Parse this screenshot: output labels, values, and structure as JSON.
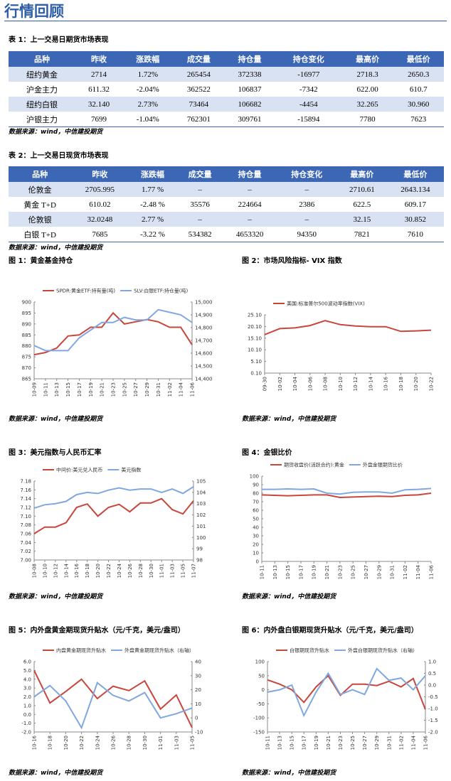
{
  "title": "行情回顾",
  "tables": [
    {
      "caption": "表 1：上一交易日期货市场表现",
      "headers": [
        "品种",
        "昨收",
        "涨跌幅",
        "成交量",
        "持仓量",
        "持仓变化",
        "最高价",
        "最低价"
      ],
      "rows": [
        [
          "纽约黄金",
          "2714",
          "1.72%",
          "265454",
          "372338",
          "-16977",
          "2718.3",
          "2650.3"
        ],
        [
          "沪金主力",
          "611.32",
          "-2.04%",
          "362522",
          "106837",
          "-7342",
          "622.00",
          "610.7"
        ],
        [
          "纽约白银",
          "32.140",
          "2.73%",
          "73464",
          "106682",
          "-4454",
          "32.265",
          "30.960"
        ],
        [
          "沪银主力",
          "7699",
          "-1.04%",
          "762301",
          "309761",
          "-15894",
          "7780",
          "7623"
        ]
      ],
      "source": "数据来源：wind，中信建投期货"
    },
    {
      "caption": "表 2：上一交易日现货市场表现",
      "headers": [
        "品种",
        "昨收",
        "涨跌幅",
        "成交量",
        "持仓量",
        "持仓变化",
        "最高价",
        "最低价"
      ],
      "rows": [
        [
          "伦敦金",
          "2705.995",
          "1.77 %",
          "–",
          "–",
          "–",
          "2710.61",
          "2643.134"
        ],
        [
          "黄金 T+D",
          "610.02",
          "-2.48 %",
          "35576",
          "224664",
          "2386",
          "622.5",
          "609.17"
        ],
        [
          "伦敦银",
          "32.0248",
          "2.77 %",
          "–",
          "–",
          "–",
          "32.15",
          "30.852"
        ],
        [
          "白银 T+D",
          "7685",
          "-3.22 %",
          "534382",
          "4653320",
          "94350",
          "7821",
          "7610"
        ]
      ],
      "source": "数据来源：wind，中信建投期货"
    }
  ],
  "chart_data": [
    {
      "type": "line",
      "title": "图 1：黄金基金持仓",
      "source": "数据来源：wind，中信建投期货",
      "categories": [
        "10-09",
        "10-11",
        "10-13",
        "10-15",
        "10-17",
        "10-19",
        "10-21",
        "10-23",
        "10-25",
        "10-27",
        "10-29",
        "10-31",
        "11-02",
        "11-04",
        "11-06"
      ],
      "series": [
        {
          "name": "SPDR:黄金ETF:持有量(吨)",
          "color": "#c9463d",
          "values": [
            876,
            877,
            879,
            884.5,
            885,
            888.5,
            888.5,
            895,
            890,
            891,
            892,
            891,
            888.5,
            888.5,
            880.5
          ]
        },
        {
          "name": "SLV:白银ETF:持仓量(吨)",
          "color": "#80a8e0",
          "axis": "y2",
          "values": [
            14660,
            14620,
            14620,
            14620,
            14720,
            14780,
            14840,
            14840,
            14880,
            14860,
            14860,
            14940,
            14920,
            14900,
            14840
          ]
        }
      ],
      "ylim": [
        865,
        900
      ],
      "yticks": [
        865,
        870,
        875,
        880,
        885,
        890,
        895,
        900
      ],
      "y2lim": [
        14400,
        15000
      ],
      "y2ticks": [
        {
          "value": 14400,
          "label": "14,400"
        },
        {
          "value": 14500,
          "label": "14,500"
        },
        {
          "value": 14600,
          "label": "14,600"
        },
        {
          "value": 14700,
          "label": "14,700"
        },
        {
          "value": 14800,
          "label": "14,800"
        },
        {
          "value": 14900,
          "label": "14,900"
        },
        {
          "value": 15000,
          "label": "15,000"
        }
      ]
    },
    {
      "type": "line",
      "title": "图 2：市场风险指标- VIX 指数",
      "source": "数据来源：wind，中信建投期货",
      "categories": [
        "09-30",
        "10-02",
        "10-04",
        "10-06",
        "10-08",
        "10-10",
        "10-12",
        "10-14",
        "10-16",
        "10-18",
        "10-20",
        "10-22"
      ],
      "series": [
        {
          "name": "美国:标准普尔500波动率指数(VIX)",
          "color": "#c9463d",
          "values": [
            16.6,
            19.2,
            19.5,
            20.5,
            22.6,
            20.9,
            20.3,
            20,
            20,
            18,
            18.2,
            18.5
          ]
        }
      ],
      "ylim": [
        0.1,
        25.1
      ],
      "yticks": [
        {
          "value": 0.1,
          "label": "0.10"
        },
        {
          "value": 5.1,
          "label": "5.10"
        },
        {
          "value": 10.1,
          "label": "10.10"
        },
        {
          "value": 15.1,
          "label": "15.10"
        },
        {
          "value": 20.1,
          "label": "20.10"
        },
        {
          "value": 25.1,
          "label": "25.10"
        }
      ]
    },
    {
      "type": "line",
      "title": "图 3：美元指数与人民币汇率",
      "source": "数据来源：wind，中信建投期货",
      "categories": [
        "10-08",
        "10-10",
        "10-12",
        "10-14",
        "10-16",
        "10-18",
        "10-20",
        "10-22",
        "10-24",
        "10-26",
        "10-28",
        "10-30",
        "11-01",
        "11-03",
        "11-05",
        "11-07"
      ],
      "series": [
        {
          "name": "中间价:美元兑人民币",
          "color": "#c9463d",
          "values": [
            7.06,
            7.075,
            7.075,
            7.085,
            7.12,
            7.128,
            7.1,
            7.12,
            7.127,
            7.11,
            7.13,
            7.13,
            7.14,
            7.115,
            7.105,
            7.135
          ]
        },
        {
          "name": "美元指数",
          "color": "#80a8e0",
          "axis": "y2",
          "values": [
            102.6,
            102.9,
            103,
            103.2,
            103.8,
            104,
            103.9,
            104.2,
            104.4,
            104.2,
            104.3,
            104.3,
            104,
            104.3,
            103.9,
            104.5
          ]
        }
      ],
      "ylim": [
        7,
        7.18
      ],
      "yticks": [
        {
          "value": 7,
          "label": "7.00"
        },
        {
          "value": 7.02,
          "label": "7.02"
        },
        {
          "value": 7.04,
          "label": "7.04"
        },
        {
          "value": 7.06,
          "label": "7.06"
        },
        {
          "value": 7.08,
          "label": "7.08"
        },
        {
          "value": 7.1,
          "label": "7.10"
        },
        {
          "value": 7.12,
          "label": "7.12"
        },
        {
          "value": 7.14,
          "label": "7.14"
        },
        {
          "value": 7.16,
          "label": "7.16"
        },
        {
          "value": 7.18,
          "label": "7.18"
        }
      ],
      "y2lim": [
        98,
        105
      ],
      "y2ticks": [
        98,
        99,
        100,
        101,
        102,
        103,
        104,
        105
      ]
    },
    {
      "type": "line",
      "title": "图 4：金银比价",
      "source": "数据来源：wind，中信建投期货",
      "categories": [
        "10-11",
        "10-13",
        "10-15",
        "10-17",
        "10-19",
        "10-21",
        "10-23",
        "10-25",
        "10-27",
        "10-29",
        "10-31",
        "11-02",
        "11-04",
        "11-06"
      ],
      "series": [
        {
          "name": "期货收盘价(活跃合约):黄金",
          "color": "#c9463d",
          "values": [
            78,
            77.5,
            77,
            77.5,
            78,
            78,
            75,
            75.5,
            76,
            76.5,
            76,
            77.5,
            78,
            80
          ]
        },
        {
          "name": "外盘金银期货比价",
          "color": "#80a8e0",
          "values": [
            84.5,
            84.5,
            85,
            84.5,
            85,
            80,
            79,
            81,
            81.5,
            81.5,
            80,
            84,
            84.5,
            85.5
          ]
        }
      ],
      "ylim": [
        0,
        100
      ],
      "yticks": [
        0,
        10,
        20,
        30,
        40,
        50,
        60,
        70,
        80,
        90,
        100
      ]
    },
    {
      "type": "line",
      "title": "图 5：内外盘黄金期现货升贴水（元/千克，美元/盎司）",
      "source": "数据来源：wind，中信建投期货",
      "categories": [
        "10-16",
        "10-18",
        "10-20",
        "10-22",
        "10-24",
        "10-26",
        "10-28",
        "10-30",
        "11-01",
        "11-03",
        "11-05"
      ],
      "series": [
        {
          "name": "内盘黄金期现货升贴水",
          "color": "#c9463d",
          "values": [
            5,
            1.3,
            2.6,
            4,
            1.8,
            3.2,
            2.7,
            3.8,
            0.6,
            2.2,
            -1.5
          ]
        },
        {
          "name": "外盘黄金期现货升贴水（右轴）",
          "color": "#80a8e0",
          "axis": "y2",
          "values": [
            15,
            23,
            12,
            -7,
            25,
            16,
            12,
            18,
            0,
            3,
            7
          ]
        }
      ],
      "ylim": [
        -2,
        6
      ],
      "yticks": [
        {
          "value": -2,
          "label": "-2.0"
        },
        {
          "value": -1,
          "label": "-1.0"
        },
        {
          "value": 0,
          "label": "0.0"
        },
        {
          "value": 1,
          "label": "1.0"
        },
        {
          "value": 2,
          "label": "2.0"
        },
        {
          "value": 3,
          "label": "3.0"
        },
        {
          "value": 4,
          "label": "4.0"
        },
        {
          "value": 5,
          "label": "5.0"
        },
        {
          "value": 6,
          "label": "6.0"
        }
      ],
      "y2lim": [
        -10,
        40
      ],
      "y2ticks": [
        -10,
        0,
        10,
        20,
        30,
        40
      ]
    },
    {
      "type": "line",
      "title": "图 6：内外盘白银期现货升贴水（元/千克，美元/盎司）",
      "source": "数据来源：wind，中信建投期货",
      "categories": [
        "10-11",
        "10-13",
        "10-15",
        "10-17",
        "10-19",
        "10-21",
        "10-23",
        "10-25",
        "10-27",
        "10-29",
        "10-31",
        "11-02",
        "11-04",
        "11-06"
      ],
      "series": [
        {
          "name": "白银期现货升贴水",
          "color": "#c9463d",
          "values": [
            35,
            20,
            0,
            -45,
            10,
            50,
            -20,
            20,
            20,
            15,
            30,
            10,
            40,
            -70
          ]
        },
        {
          "name": "外盘白银期现货升贴水（右轴）",
          "color": "#80a8e0",
          "axis": "y2",
          "values": [
            -0.3,
            -0.2,
            0,
            -1.3,
            -0.3,
            0.5,
            -0.4,
            -0.2,
            -0.4,
            0.7,
            0.2,
            0.3,
            -0.2,
            0.4
          ]
        }
      ],
      "ylim": [
        -150,
        100
      ],
      "yticks": [
        -150,
        -100,
        -50,
        0,
        50,
        100
      ],
      "y2lim": [
        -2,
        1
      ],
      "y2ticks": [
        {
          "value": -2,
          "label": "-2.0"
        },
        {
          "value": -1.5,
          "label": "-1.5"
        },
        {
          "value": -1,
          "label": "-1.0"
        },
        {
          "value": -0.5,
          "label": "-0.5"
        },
        {
          "value": 0,
          "label": "0.0"
        },
        {
          "value": 0.5,
          "label": "0.5"
        },
        {
          "value": 1,
          "label": "1.0"
        }
      ]
    }
  ]
}
